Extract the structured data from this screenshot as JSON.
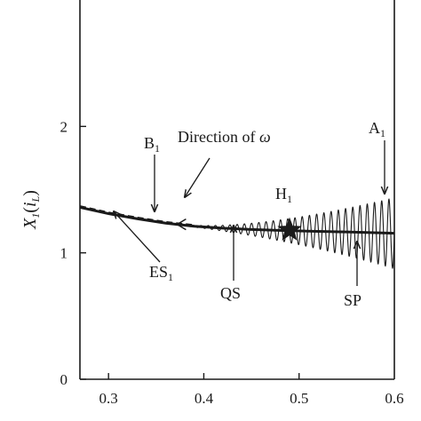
{
  "chart_data": {
    "type": "line",
    "title": "",
    "xlabel": "",
    "ylabel": {
      "main": "X",
      "sub": "1",
      "open": "(",
      "var": "i",
      "var_sub": "L",
      "close": ")"
    },
    "xlim": [
      0.27,
      0.6
    ],
    "ylim": [
      0,
      3
    ],
    "x_ticks": [
      0.3,
      0.4,
      0.5,
      0.6
    ],
    "x_tick_labels": [
      "0.3",
      "0.4",
      "0.5",
      "0.6"
    ],
    "y_ticks": [
      0,
      1,
      2
    ],
    "y_tick_labels": [
      "0",
      "1",
      "2"
    ],
    "grid": false,
    "series": [
      {
        "style": "dashed",
        "color": "#1a1a1a",
        "x": [
          0.27,
          0.3,
          0.33,
          0.36,
          0.39
        ],
        "y": [
          1.37,
          1.32,
          1.28,
          1.245,
          1.22
        ]
      },
      {
        "style": "solid",
        "color": "#1a1a1a",
        "x": [
          0.27,
          0.3,
          0.33,
          0.36,
          0.39,
          0.42,
          0.45,
          0.49,
          0.52,
          0.55,
          0.6
        ],
        "y": [
          1.36,
          1.31,
          1.27,
          1.235,
          1.21,
          1.195,
          1.185,
          1.175,
          1.17,
          1.165,
          1.155
        ]
      },
      {
        "style": "oscillation",
        "color": "#1a1a1a",
        "x_start": 0.38,
        "x_end": 0.6,
        "cycles": 29,
        "amplitude_start": 0.005,
        "amplitude_end": 0.28
      }
    ],
    "markers": [
      {
        "name": "H",
        "sub": "1",
        "symbol": "star",
        "x": 0.49,
        "y": 1.18
      }
    ],
    "annotations": [
      {
        "text": "Direction of ",
        "symbol": "ω",
        "target": [
          0.38,
          1.38
        ],
        "style": "arrow"
      },
      {
        "text": "B",
        "sub": "1",
        "target": [
          0.348,
          1.25
        ],
        "style": "arrow"
      },
      {
        "text": "A",
        "sub": "1",
        "target": [
          0.59,
          1.38
        ],
        "style": "arrow"
      },
      {
        "text": "ES",
        "sub": "1",
        "target": [
          0.305,
          1.29
        ],
        "style": "arrow"
      },
      {
        "text": "QS",
        "target": [
          0.435,
          1.2
        ],
        "style": "arrow"
      },
      {
        "text": "SP",
        "target": [
          0.565,
          1.05
        ],
        "style": "arrow"
      }
    ]
  }
}
